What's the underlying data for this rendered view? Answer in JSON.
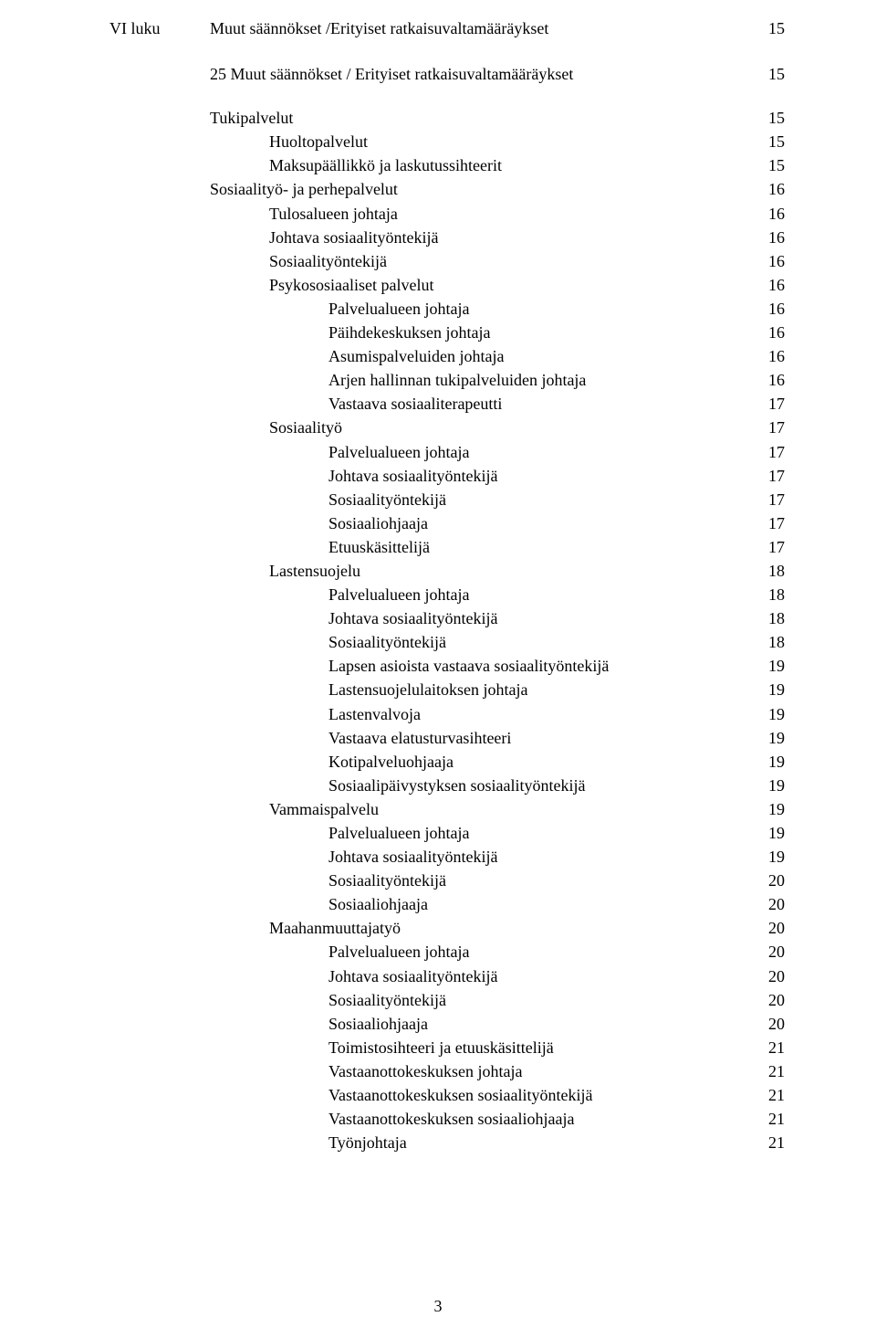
{
  "fonts": {
    "body_family": "Times New Roman",
    "body_size_pt": 13
  },
  "colors": {
    "text": "#000000",
    "background": "#ffffff"
  },
  "page_number": "3",
  "chapter": {
    "roman": "VI luku",
    "title": "Muut säännökset /Erityiset ratkaisuvaltamääräykset",
    "page": "15"
  },
  "entries": [
    {
      "label": "25 Muut säännökset / Erityiset ratkaisuvaltamääräykset",
      "page": "15",
      "indent": 1,
      "gap": true
    },
    {
      "label": "Tukipalvelut",
      "page": "15",
      "indent": 1
    },
    {
      "label": "Huoltopalvelut",
      "page": "15",
      "indent": 2
    },
    {
      "label": "Maksupäällikkö ja laskutussihteerit",
      "page": "15",
      "indent": 2
    },
    {
      "label": "Sosiaalityö- ja perhepalvelut",
      "page": "16",
      "indent": 1
    },
    {
      "label": "Tulosalueen johtaja",
      "page": "16",
      "indent": 2
    },
    {
      "label": "Johtava sosiaalityöntekijä",
      "page": "16",
      "indent": 2
    },
    {
      "label": "Sosiaalityöntekijä",
      "page": "16",
      "indent": 2
    },
    {
      "label": "Psykososiaaliset palvelut",
      "page": "16",
      "indent": 2
    },
    {
      "label": "Palvelualueen johtaja",
      "page": "16",
      "indent": 3
    },
    {
      "label": "Päihdekeskuksen johtaja",
      "page": "16",
      "indent": 3
    },
    {
      "label": "Asumispalveluiden johtaja",
      "page": "16",
      "indent": 3
    },
    {
      "label": "Arjen hallinnan tukipalveluiden johtaja",
      "page": "16",
      "indent": 3
    },
    {
      "label": "Vastaava sosiaaliterapeutti",
      "page": "17",
      "indent": 3
    },
    {
      "label": "Sosiaalityö",
      "page": "17",
      "indent": 2
    },
    {
      "label": "Palvelualueen johtaja",
      "page": "17",
      "indent": 3
    },
    {
      "label": "Johtava sosiaalityöntekijä",
      "page": "17",
      "indent": 3
    },
    {
      "label": "Sosiaalityöntekijä",
      "page": "17",
      "indent": 3
    },
    {
      "label": "Sosiaaliohjaaja",
      "page": "17",
      "indent": 3
    },
    {
      "label": "Etuuskäsittelijä",
      "page": "17",
      "indent": 3
    },
    {
      "label": "Lastensuojelu",
      "page": "18",
      "indent": 2
    },
    {
      "label": "Palvelualueen johtaja",
      "page": "18",
      "indent": 3
    },
    {
      "label": "Johtava sosiaalityöntekijä",
      "page": "18",
      "indent": 3
    },
    {
      "label": "Sosiaalityöntekijä",
      "page": "18",
      "indent": 3
    },
    {
      "label": "Lapsen asioista vastaava sosiaalityöntekijä",
      "page": "19",
      "indent": 3
    },
    {
      "label": "Lastensuojelulaitoksen johtaja",
      "page": "19",
      "indent": 3
    },
    {
      "label": "Lastenvalvoja",
      "page": "19",
      "indent": 3
    },
    {
      "label": "Vastaava elatusturvasihteeri",
      "page": "19",
      "indent": 3
    },
    {
      "label": "Kotipalveluohjaaja",
      "page": "19",
      "indent": 3
    },
    {
      "label": "Sosiaalipäivystyksen sosiaalityöntekijä",
      "page": "19",
      "indent": 3
    },
    {
      "label": "Vammaispalvelu",
      "page": "19",
      "indent": 2
    },
    {
      "label": "Palvelualueen johtaja",
      "page": "19",
      "indent": 3
    },
    {
      "label": "Johtava sosiaalityöntekijä",
      "page": "19",
      "indent": 3
    },
    {
      "label": "Sosiaalityöntekijä",
      "page": "20",
      "indent": 3
    },
    {
      "label": "Sosiaaliohjaaja",
      "page": "20",
      "indent": 3
    },
    {
      "label": "Maahanmuuttajatyö",
      "page": "20",
      "indent": 2
    },
    {
      "label": "Palvelualueen johtaja",
      "page": "20",
      "indent": 3
    },
    {
      "label": "Johtava sosiaalityöntekijä",
      "page": "20",
      "indent": 3
    },
    {
      "label": "Sosiaalityöntekijä",
      "page": "20",
      "indent": 3
    },
    {
      "label": "Sosiaaliohjaaja",
      "page": "20",
      "indent": 3
    },
    {
      "label": "Toimistosihteeri ja etuuskäsittelijä",
      "page": "21",
      "indent": 3
    },
    {
      "label": "Vastaanottokeskuksen johtaja",
      "page": "21",
      "indent": 3
    },
    {
      "label": "Vastaanottokeskuksen sosiaalityöntekijä",
      "page": "21",
      "indent": 3
    },
    {
      "label": "Vastaanottokeskuksen sosiaaliohjaaja",
      "page": "21",
      "indent": 3
    },
    {
      "label": "Työnjohtaja",
      "page": "21",
      "indent": 3
    }
  ]
}
